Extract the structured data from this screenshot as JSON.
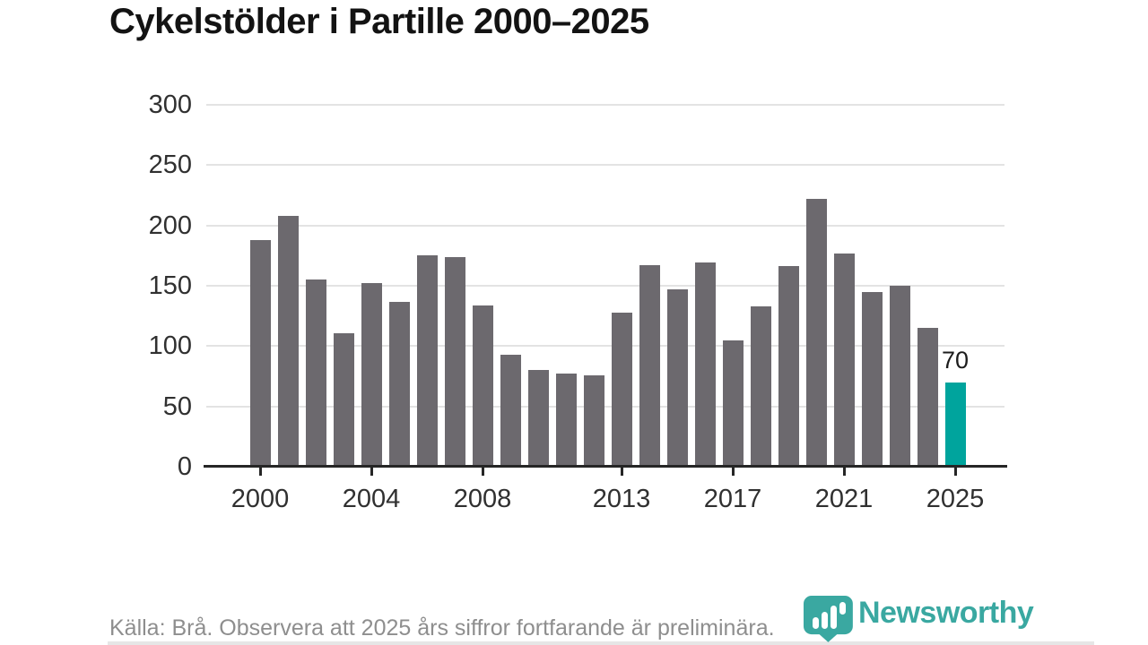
{
  "title": "Cykelstölder i Partille 2000–2025",
  "footer": {
    "source_note": "Källa: Brå. Observera att 2025 års siffror fortfarande är preliminära.",
    "brand": "Newsworthy"
  },
  "colors": {
    "bar": "#6c696e",
    "highlight": "#00a49d",
    "brand": "#3aa8a1",
    "grid": "#e3e3e3",
    "axis": "#262626",
    "tick_text": "#303030",
    "title_text": "#131313",
    "muted_text": "#8e8e8e"
  },
  "chart_data": {
    "type": "bar",
    "title": "Cykelstölder i Partille 2000–2025",
    "xlabel": "",
    "ylabel": "",
    "x": [
      2000,
      2001,
      2002,
      2003,
      2004,
      2005,
      2006,
      2007,
      2008,
      2009,
      2010,
      2011,
      2012,
      2013,
      2014,
      2015,
      2016,
      2017,
      2018,
      2019,
      2020,
      2021,
      2022,
      2023,
      2024,
      2025
    ],
    "values": [
      188,
      208,
      155,
      111,
      152,
      137,
      175,
      174,
      134,
      93,
      80,
      77,
      76,
      128,
      167,
      147,
      169,
      105,
      133,
      166,
      222,
      177,
      145,
      150,
      115,
      70
    ],
    "highlight_year": 2025,
    "data_labels": {
      "2025": "70"
    },
    "yticks": [
      0,
      50,
      100,
      150,
      200,
      250,
      300
    ],
    "xticks": [
      2000,
      2004,
      2008,
      2013,
      2017,
      2021,
      2025
    ],
    "ylim": [
      0,
      300
    ],
    "grid": "horizontal",
    "legend": "none",
    "bar_color": "#6c696e",
    "highlight_color": "#00a49d"
  }
}
